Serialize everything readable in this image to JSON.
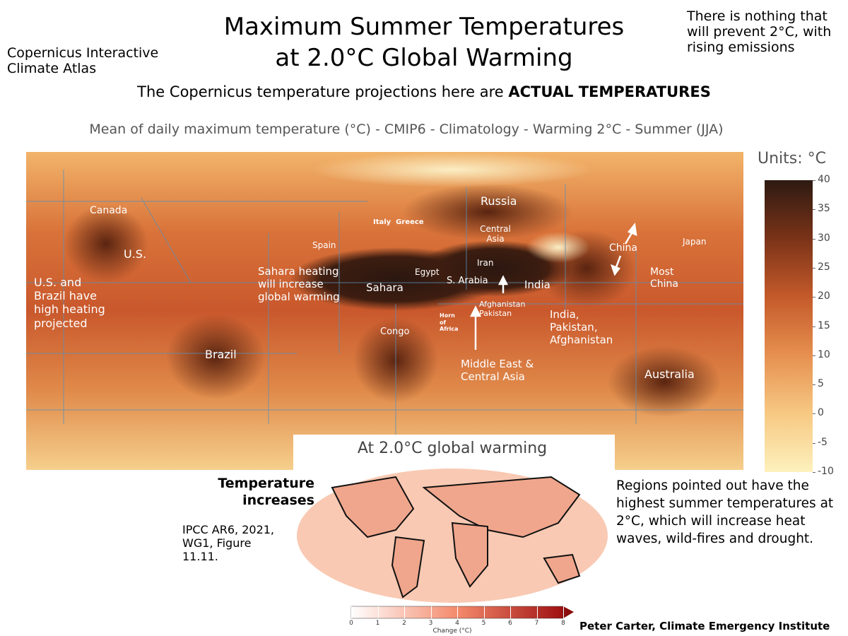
{
  "header": {
    "title_line1": "Maximum Summer Temperatures",
    "title_line2": "at  2.0°C Global Warming",
    "source_left": "Copernicus Interactive Climate Atlas",
    "note_right": "There is nothing that will prevent 2°C, with rising emissions",
    "subtitle_plain": "The Copernicus temperature projections here are ",
    "subtitle_bold": "ACTUAL TEMPERATURES",
    "map_title": "Mean of daily maximum temperature (°C) - CMIP6 - Climatology - Warming 2°C - Summer (JJA)"
  },
  "map": {
    "labels": [
      "Canada",
      "U.S.",
      "U.S. and Brazil have high heating projected",
      "Spain",
      "Italy  Greece",
      "Russia",
      "Central Asia",
      "China",
      "Japan",
      "Most China",
      "Iran",
      "Egypt",
      "S. Arabia",
      "Sahara",
      "Sahara heating will increase global warming",
      "India",
      "Afghanistan Pakistan",
      "Horn of Africa",
      "Congo",
      "India, Pakistan, Afghanistan",
      "Middle East & Central Asia",
      "Brazil",
      "Australia"
    ]
  },
  "colorbar": {
    "units": "Units: °C",
    "ticks": [
      40,
      35,
      30,
      25,
      20,
      15,
      10,
      5,
      0,
      -5,
      -10
    ]
  },
  "inset": {
    "title": "At 2.0°C global warming",
    "side_label": "Temperature increases",
    "citation": "IPCC AR6, 2021, WG1, Figure 11.11.",
    "ticks": [
      0,
      1,
      2,
      3,
      4,
      5,
      6,
      7,
      8
    ],
    "axis_label": "Change (°C)"
  },
  "note": "Regions pointed out have the highest summer temperatures at 2°C, which will increase heat waves, wild-fires and drought.",
  "credit": "Peter Carter, Climate Emergency Institute"
}
